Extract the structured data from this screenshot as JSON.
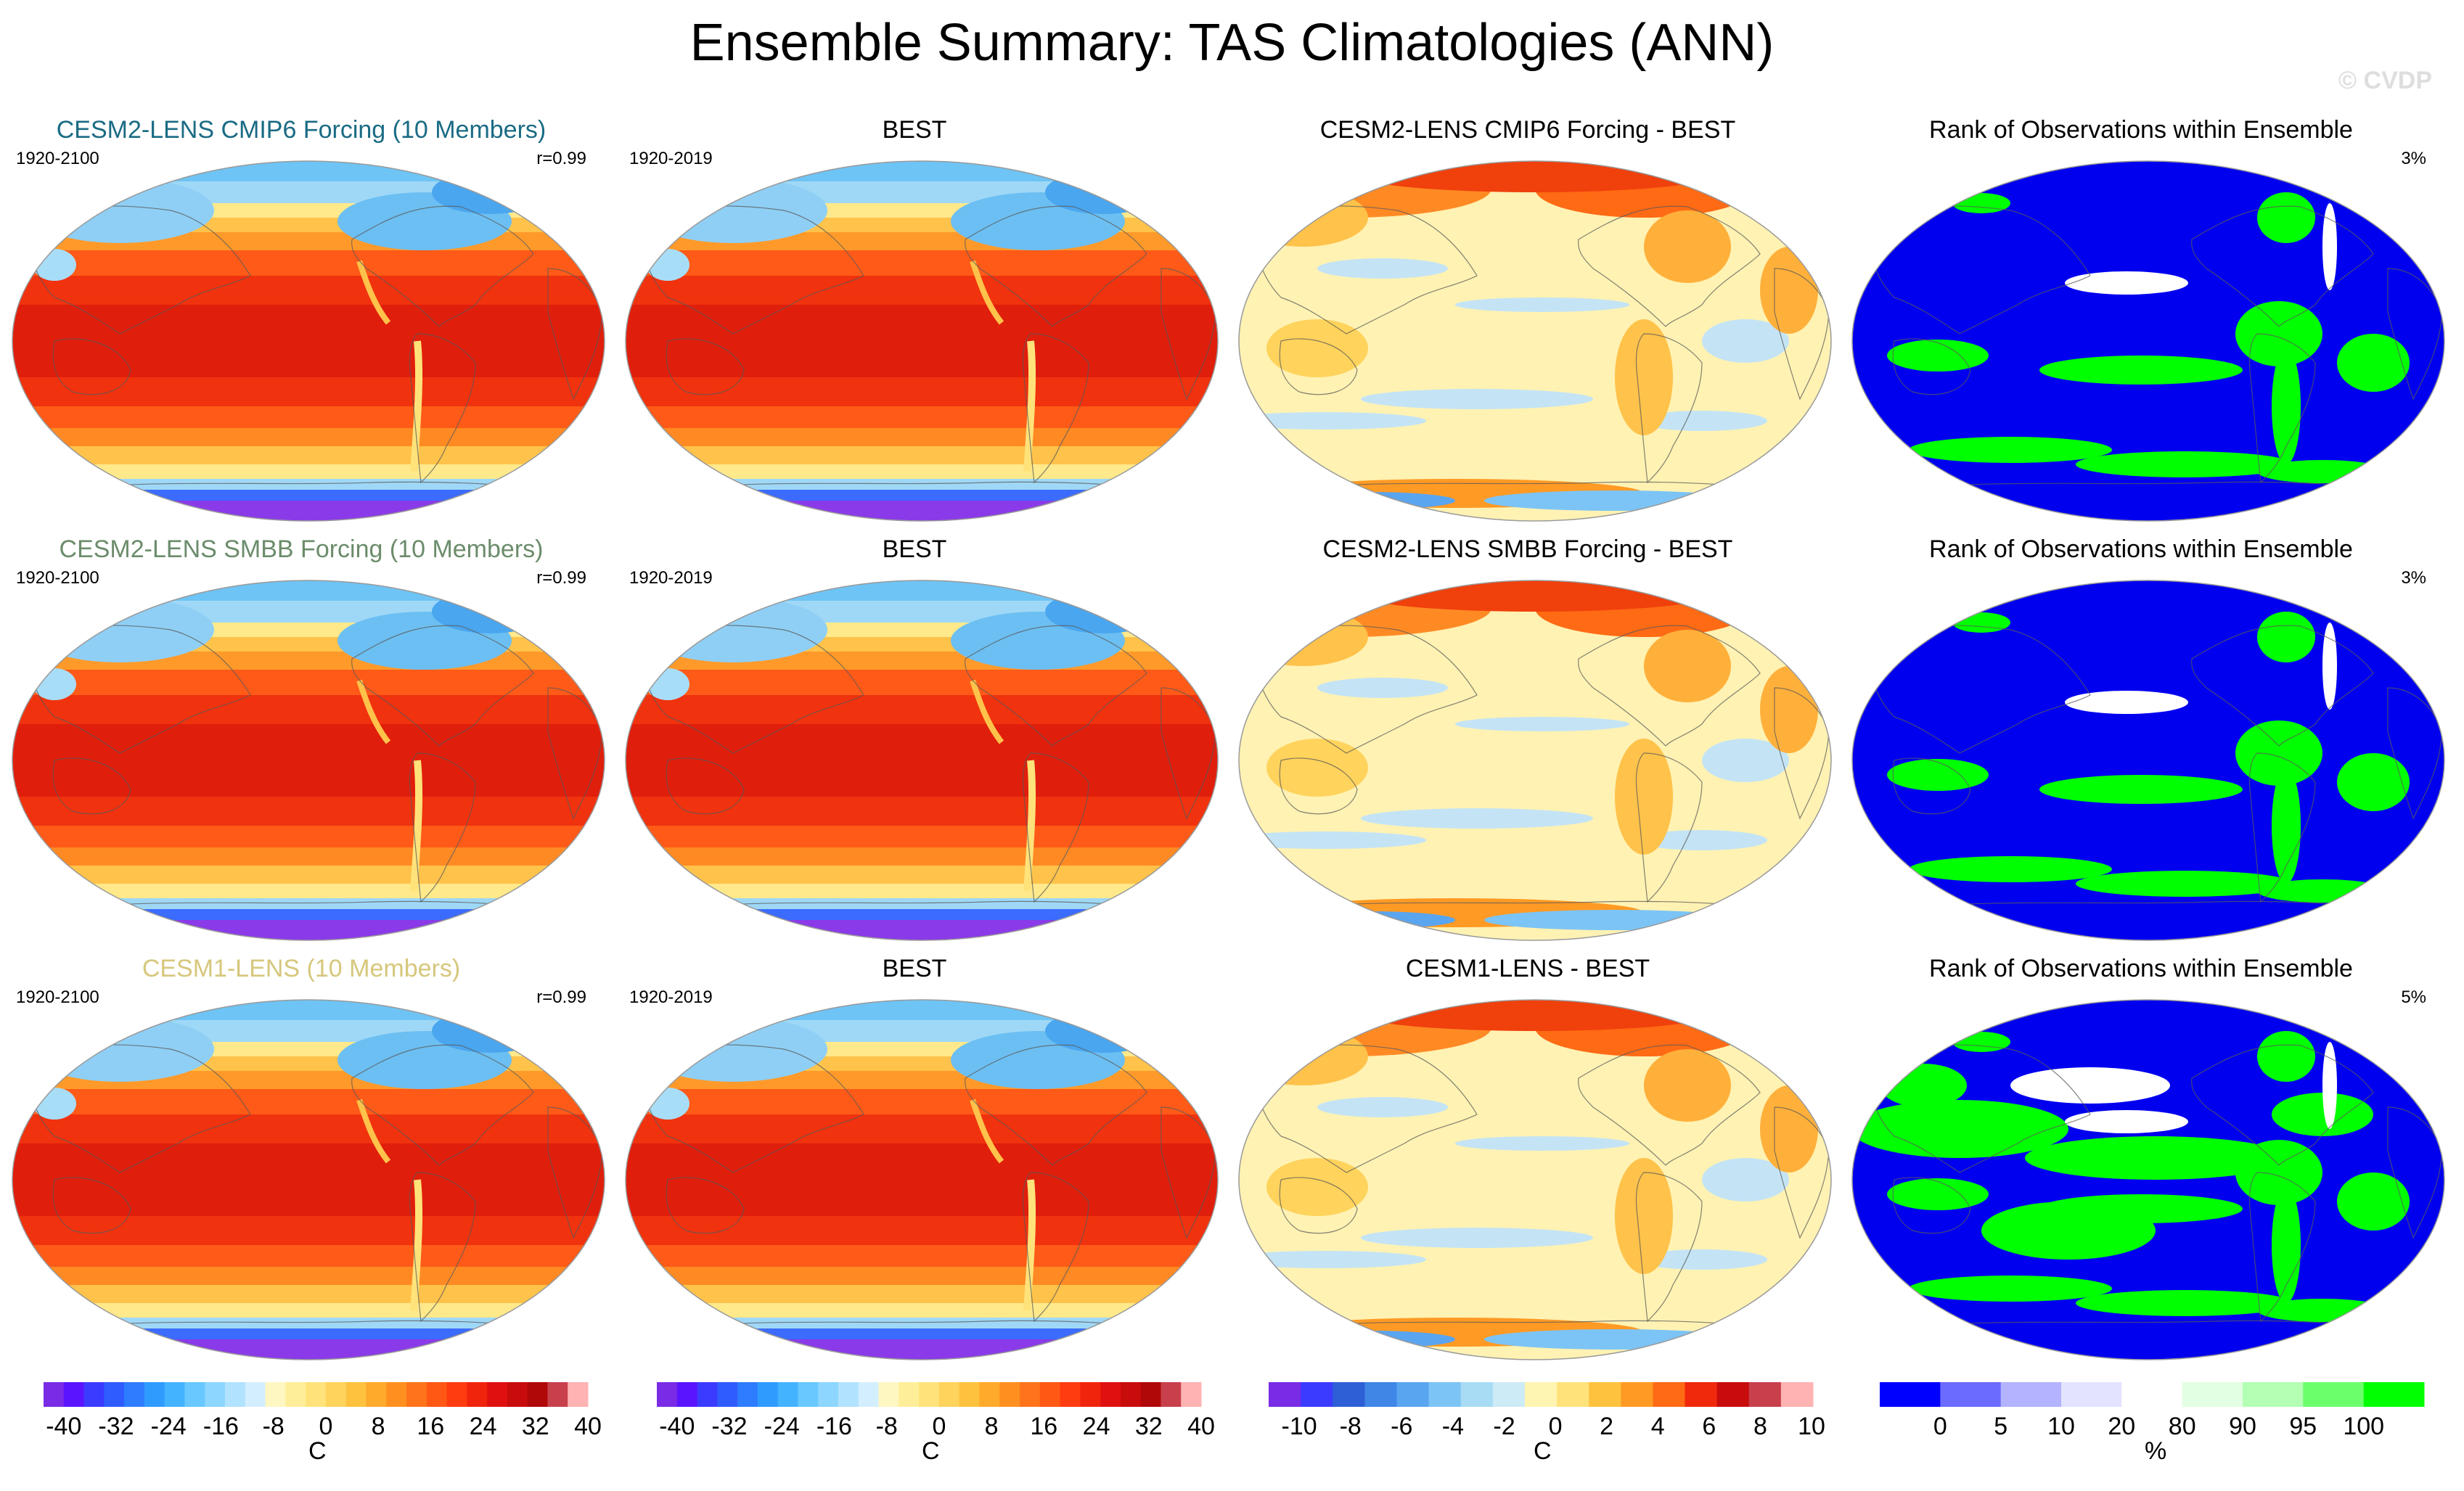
{
  "title": "Ensemble Summary: TAS Climatologies (ANN)",
  "watermark": "© CVDP",
  "rows": [
    {
      "model": {
        "title": "CESM2-LENS CMIP6 Forcing (10 Members)",
        "title_color": "#1a6b84",
        "period": "1920-2100",
        "corr": "r=0.99"
      },
      "obs": {
        "title": "BEST",
        "period": "1920-2019"
      },
      "diff": {
        "title": "CESM2-LENS CMIP6 Forcing - BEST"
      },
      "rank": {
        "title": "Rank of Observations within Ensemble",
        "pct": "3%"
      }
    },
    {
      "model": {
        "title": "CESM2-LENS SMBB Forcing (10 Members)",
        "title_color": "#6b8c6b",
        "period": "1920-2100",
        "corr": "r=0.99"
      },
      "obs": {
        "title": "BEST",
        "period": "1920-2019"
      },
      "diff": {
        "title": "CESM2-LENS SMBB Forcing - BEST"
      },
      "rank": {
        "title": "Rank of Observations within Ensemble",
        "pct": "3%"
      }
    },
    {
      "model": {
        "title": "CESM1-LENS (10 Members)",
        "title_color": "#d6c77c",
        "period": "1920-2100",
        "corr": "r=0.99"
      },
      "obs": {
        "title": "BEST",
        "period": "1920-2019"
      },
      "diff": {
        "title": "CESM1-LENS - BEST"
      },
      "rank": {
        "title": "Rank of Observations within Ensemble",
        "pct": "5%"
      }
    }
  ],
  "colorbars": [
    {
      "ticks": [
        "-40",
        "-32",
        "-24",
        "-16",
        "-8",
        "0",
        "8",
        "16",
        "24",
        "32",
        "40"
      ],
      "unit": "C",
      "colors": [
        "#7a2be6",
        "#5b14ff",
        "#3b3bff",
        "#2f5cff",
        "#2e7cff",
        "#2f9bff",
        "#44b3ff",
        "#68c8ff",
        "#8dd6ff",
        "#b1e3ff",
        "#d3eeff",
        "#fff7c2",
        "#ffee99",
        "#ffe27a",
        "#ffd35c",
        "#ffc23f",
        "#ffaa2b",
        "#ff9020",
        "#ff741a",
        "#ff5814",
        "#ff3b10",
        "#f0240c",
        "#e01010",
        "#c80c0c",
        "#b00808",
        "#c8404c",
        "#ffb3b3"
      ]
    },
    {
      "ticks": [
        "-40",
        "-32",
        "-24",
        "-16",
        "-8",
        "0",
        "8",
        "16",
        "24",
        "32",
        "40"
      ],
      "unit": "C",
      "colors": [
        "#7a2be6",
        "#5b14ff",
        "#3b3bff",
        "#2f5cff",
        "#2e7cff",
        "#2f9bff",
        "#44b3ff",
        "#68c8ff",
        "#8dd6ff",
        "#b1e3ff",
        "#d3eeff",
        "#fff7c2",
        "#ffee99",
        "#ffe27a",
        "#ffd35c",
        "#ffc23f",
        "#ffaa2b",
        "#ff9020",
        "#ff741a",
        "#ff5814",
        "#ff3b10",
        "#f0240c",
        "#e01010",
        "#c80c0c",
        "#b00808",
        "#c8404c",
        "#ffb3b3"
      ]
    },
    {
      "ticks": [
        "-10",
        "-8",
        "-6",
        "-4",
        "-2",
        "0",
        "2",
        "4",
        "6",
        "8",
        "10"
      ],
      "unit": "C",
      "colors": [
        "#7a2be6",
        "#3b3bff",
        "#2e5fd6",
        "#3f86e6",
        "#5aa5f0",
        "#7cc4f5",
        "#a8dcf5",
        "#ccebf7",
        "#fff5b3",
        "#ffe27a",
        "#ffc23f",
        "#ff9a24",
        "#ff6a14",
        "#f0280c",
        "#c80c0c",
        "#c8404c",
        "#ffb3b3"
      ]
    },
    {
      "ticks": [
        "0",
        "5",
        "10",
        "20",
        "80",
        "90",
        "95",
        "100"
      ],
      "unit": "%",
      "colors": [
        "#0000ff",
        "#6b6bff",
        "#b3b3ff",
        "#e3e3ff",
        "#ffffff",
        "#e3ffe3",
        "#b3ffb3",
        "#6bff6b",
        "#00ff00"
      ]
    }
  ]
}
